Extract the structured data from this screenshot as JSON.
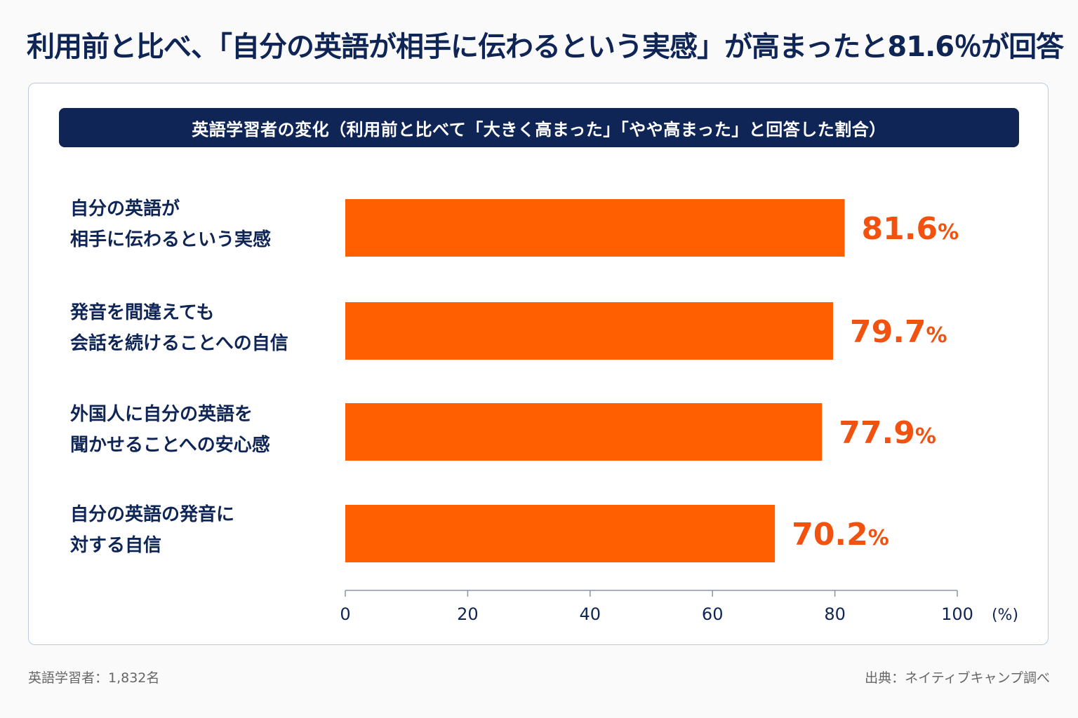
{
  "title": "利用前と比べ、「自分の英語が相手に伝わるという実感」が高まったと81.6％が回答",
  "chart_header": "英語学習者の変化（利用前と比べて「大きく高まった」「やや高まった」と回答した割合）",
  "footer": {
    "sample": "英語学習者：1,832名",
    "source": "出典：ネイティブキャンプ調べ"
  },
  "labels": [
    [
      "自分の英語が",
      "相手に伝わるという実感"
    ],
    [
      "発音を間違えても",
      "会話を続けることへの自信"
    ],
    [
      "外国人に自分の英語を",
      "聞かせることへの安心感"
    ],
    [
      "自分の英語の発音に",
      "対する自信"
    ]
  ],
  "chart_data": {
    "type": "bar",
    "orientation": "horizontal",
    "categories": [
      "自分の英語が相手に伝わるという実感",
      "発音を間違えても会話を続けることへの自信",
      "外国人に自分の英語を聞かせることへの安心感",
      "自分の英語の発音に対する自信"
    ],
    "values": [
      81.6,
      79.7,
      77.9,
      70.2
    ],
    "value_labels": [
      "81.6",
      "79.7",
      "77.9",
      "70.2"
    ],
    "value_unit": "%",
    "xlim": [
      0,
      100
    ],
    "xticks": [
      0,
      20,
      40,
      60,
      80,
      100
    ],
    "x_unit_label": "(%)",
    "bar_color": "#ff5f00",
    "value_color": "#f2520f",
    "axis_color": "#0f2556"
  }
}
